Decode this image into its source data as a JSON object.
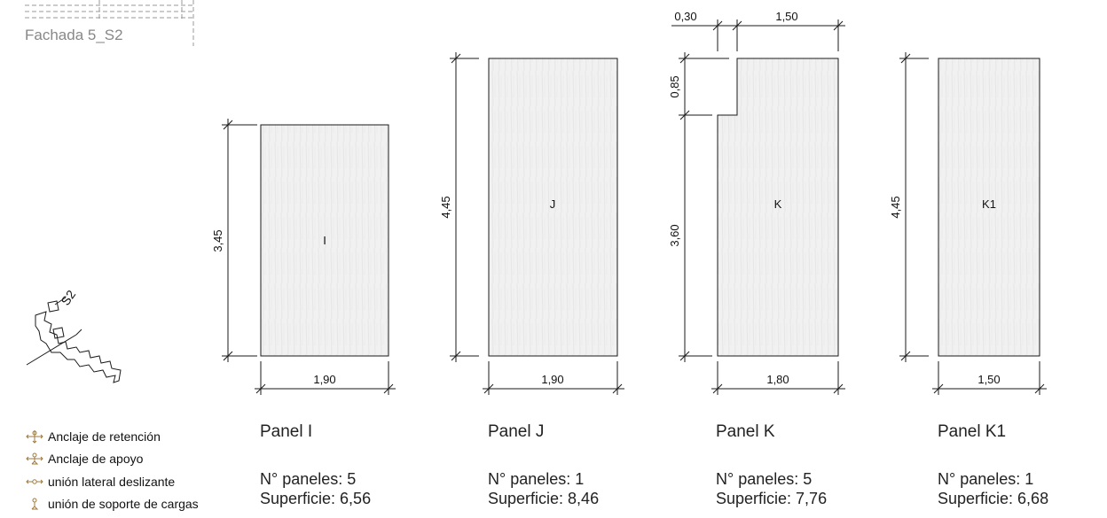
{
  "header": {
    "title": "Fachada 5_S2"
  },
  "key_plan": {
    "label": "S2"
  },
  "legend": [
    {
      "label": "Anclaje de retención",
      "icon": "retention-anchor-icon"
    },
    {
      "label": "Anclaje de apoyo",
      "icon": "support-anchor-icon"
    },
    {
      "label": "unión lateral deslizante",
      "icon": "sliding-joint-icon"
    },
    {
      "label": "unión de soporte de cargas",
      "icon": "load-support-joint-icon"
    }
  ],
  "panels": [
    {
      "id": "I",
      "name": "Panel I",
      "count_text": "N° paneles: 5",
      "area_text": "Superficie: 6,56",
      "width": "1,90",
      "height": "3,45"
    },
    {
      "id": "J",
      "name": "Panel J",
      "count_text": "N° paneles: 1",
      "area_text": "Superficie: 8,46",
      "width": "1,90",
      "height": "4,45"
    },
    {
      "id": "K",
      "name": "Panel K",
      "count_text": "N° paneles: 5",
      "area_text": "Superficie: 7,76",
      "width": "1,80",
      "height": "3,60",
      "notch_height": "0,85",
      "notch_width": "0,30",
      "top_width": "1,50"
    },
    {
      "id": "K1",
      "name": "Panel K1",
      "count_text": "N° paneles: 1",
      "area_text": "Superficie: 6,68",
      "width": "1,50",
      "height": "4,45"
    }
  ],
  "colors": {
    "panel_fill": "#f0f0f0",
    "line": "#1a1a1a",
    "accent": "#a07a3c",
    "title": "#888888"
  }
}
